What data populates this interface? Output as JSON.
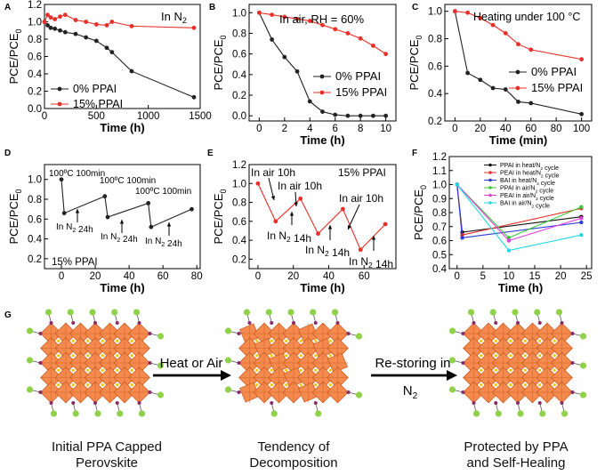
{
  "chart_data": [
    {
      "panel": "A",
      "type": "line",
      "annotation": "In N₂",
      "xlabel": "Time (h)",
      "ylabel": "PCE/PCE₀",
      "xlim": [
        0,
        1500
      ],
      "ylim": [
        0,
        1.2
      ],
      "xticks": [
        0,
        500,
        1000,
        1500
      ],
      "yticks": [
        0.0,
        0.2,
        0.4,
        0.6,
        0.8,
        1.0,
        1.2
      ],
      "legend": "bottom-left",
      "series": [
        {
          "name": "0% PPAI",
          "color": "#222222",
          "x": [
            0,
            30,
            60,
            100,
            150,
            200,
            300,
            400,
            500,
            600,
            650,
            840,
            1440
          ],
          "y": [
            1.0,
            0.96,
            0.93,
            0.92,
            0.9,
            0.88,
            0.86,
            0.82,
            0.78,
            0.7,
            0.65,
            0.43,
            0.13
          ]
        },
        {
          "name": "15% PPAI",
          "color": "#e8302a",
          "x": [
            0,
            30,
            60,
            100,
            150,
            200,
            300,
            400,
            500,
            600,
            650,
            840,
            1440
          ],
          "y": [
            1.0,
            1.08,
            1.05,
            1.03,
            1.06,
            1.08,
            1.02,
            1.0,
            0.97,
            0.96,
            1.0,
            0.95,
            0.93
          ]
        }
      ]
    },
    {
      "panel": "B",
      "type": "line",
      "annotation": "In air, RH = 60%",
      "xlabel": "Time (h)",
      "ylabel": "PCE/PCE₀",
      "xlim": [
        -0.8,
        10.8
      ],
      "ylim": [
        -0.05,
        1.08
      ],
      "xticks": [
        0,
        2,
        4,
        6,
        8,
        10
      ],
      "yticks": [
        0.0,
        0.2,
        0.4,
        0.6,
        0.8,
        1.0
      ],
      "legend": "center-right",
      "series": [
        {
          "name": "0% PPAI",
          "color": "#222222",
          "x": [
            0,
            1,
            2,
            3,
            4,
            5,
            6,
            7,
            8,
            9,
            10
          ],
          "y": [
            1.0,
            0.74,
            0.57,
            0.43,
            0.14,
            0.04,
            0.01,
            0.0,
            0.0,
            0.0,
            0.0
          ]
        },
        {
          "name": "15% PPAI",
          "color": "#e8302a",
          "x": [
            0,
            1,
            2,
            3,
            4,
            5,
            6,
            7,
            8,
            9,
            10
          ],
          "y": [
            1.0,
            0.98,
            0.96,
            0.94,
            0.92,
            0.88,
            0.84,
            0.8,
            0.75,
            0.68,
            0.6
          ]
        }
      ]
    },
    {
      "panel": "C",
      "type": "line",
      "annotation": "Heating under 100 °C",
      "xlabel": "Time (min)",
      "ylabel": "PCE/PCE₀",
      "xlim": [
        -8,
        108
      ],
      "ylim": [
        0.2,
        1.05
      ],
      "xticks": [
        0,
        20,
        40,
        60,
        80,
        100
      ],
      "yticks": [
        0.2,
        0.4,
        0.6,
        0.8,
        1.0
      ],
      "legend": "center-right",
      "series": [
        {
          "name": "0% PPAI",
          "color": "#222222",
          "x": [
            0,
            10,
            20,
            30,
            40,
            50,
            60,
            100
          ],
          "y": [
            1.0,
            0.55,
            0.5,
            0.44,
            0.43,
            0.34,
            0.33,
            0.25
          ]
        },
        {
          "name": "15% PPAI",
          "color": "#e8302a",
          "x": [
            0,
            10,
            20,
            30,
            40,
            50,
            60,
            100
          ],
          "y": [
            1.0,
            0.99,
            0.95,
            0.9,
            0.84,
            0.76,
            0.72,
            0.65
          ]
        }
      ]
    },
    {
      "panel": "D",
      "type": "line",
      "annotation": "15% PPAI",
      "xlabel": "Time (h)",
      "ylabel": "PCE/PCE₀",
      "xlim": [
        -10,
        82
      ],
      "ylim": [
        0.1,
        1.15
      ],
      "xticks": [
        0,
        20,
        40,
        60,
        80
      ],
      "yticks": [
        0.2,
        0.4,
        0.6,
        0.8,
        1.0
      ],
      "series": [
        {
          "name": "",
          "color": "#222222",
          "x": [
            0,
            1.67,
            25.67,
            27.33,
            51.33,
            53,
            77
          ],
          "y": [
            1.0,
            0.66,
            0.83,
            0.62,
            0.76,
            0.52,
            0.7
          ]
        }
      ],
      "labels": [
        "100ºC 100min",
        "100ºC 100min",
        "100ºC 100min",
        "In N₂ 24h",
        "In N₂ 24h",
        "In N₂ 24h"
      ]
    },
    {
      "panel": "E",
      "type": "line",
      "annotation": "15% PPAI",
      "xlabel": "Time (h)",
      "ylabel": "PCE/PCE₀",
      "xlim": [
        -5,
        78
      ],
      "ylim": [
        0.1,
        1.2
      ],
      "xticks": [
        0,
        20,
        40,
        60
      ],
      "yticks": [
        0.2,
        0.4,
        0.6,
        0.8,
        1.0,
        1.2
      ],
      "series": [
        {
          "name": "",
          "color": "#e8302a",
          "x": [
            0,
            10,
            24,
            34,
            48,
            58,
            72
          ],
          "y": [
            1.0,
            0.6,
            0.84,
            0.47,
            0.73,
            0.3,
            0.57
          ]
        }
      ],
      "labels": [
        "In air 10h",
        "In air 10h",
        "In air 10h",
        "In N₂ 14h",
        "In N₂ 14h",
        "In N₂ 14h"
      ]
    },
    {
      "panel": "F",
      "type": "line",
      "xlabel": "Time (h)",
      "ylabel": "PCE/PCE₀",
      "xlim": [
        -1.5,
        26
      ],
      "ylim": [
        0.4,
        1.2
      ],
      "xticks": [
        0,
        5,
        10,
        15,
        20,
        25
      ],
      "yticks": [
        0.4,
        0.5,
        0.6,
        0.7,
        0.8,
        0.9,
        1.0,
        1.1,
        1.2
      ],
      "legend": "top-right",
      "series": [
        {
          "name": "PPAI in heat/N₂ cycle",
          "color": "#111111",
          "x": [
            0,
            1,
            24
          ],
          "y": [
            1.0,
            0.66,
            0.77
          ]
        },
        {
          "name": "PEAI in heat/N₂ cycle",
          "color": "#e8302a",
          "x": [
            0,
            1,
            24
          ],
          "y": [
            1.0,
            0.64,
            0.83
          ]
        },
        {
          "name": "BAI in heat/N₂ cycle",
          "color": "#2f3fd6",
          "x": [
            0,
            1,
            24
          ],
          "y": [
            1.0,
            0.62,
            0.73
          ]
        },
        {
          "name": "PPAI in air/N₂ cycle",
          "color": "#3ac93a",
          "x": [
            0,
            10,
            24
          ],
          "y": [
            1.0,
            0.62,
            0.84
          ]
        },
        {
          "name": "PEAI in air/N₂ cycle",
          "color": "#e040e0",
          "x": [
            0,
            10,
            24
          ],
          "y": [
            1.0,
            0.6,
            0.76
          ]
        },
        {
          "name": "BAI in air/N₂ cycle",
          "color": "#22d6e6",
          "x": [
            0,
            10,
            24
          ],
          "y": [
            1.0,
            0.53,
            0.64
          ]
        }
      ]
    }
  ],
  "panel_g": {
    "letter": "G",
    "arrow1_label": "Heat or Air",
    "arrow2_label_line1": "Re-storing in",
    "arrow2_label_line2": "N₂",
    "caption1_line1": "Initial PPA Capped",
    "caption1_line2": "Perovskite",
    "caption2_line1": "Tendency of",
    "caption2_line2": "Decomposition",
    "caption3_line1": "Protected by PPA",
    "caption3_line2": "and Self-Healing",
    "colors": {
      "octahedron": "#f58a4e",
      "octahedron_edge": "#c55a1e",
      "ligand_green": "#8fd24a",
      "ligand_purple": "#8a2a6a",
      "ion_yellow": "#f2c200"
    }
  }
}
